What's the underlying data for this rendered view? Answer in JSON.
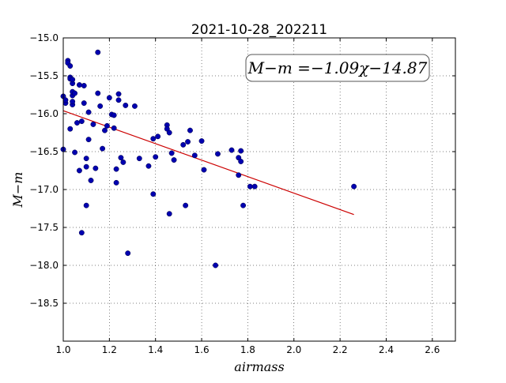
{
  "chart_data": {
    "type": "scatter",
    "title": "2021-10-28_202211",
    "xlabel": "airmass",
    "ylabel": "M−m",
    "xlim": [
      1.0,
      2.7
    ],
    "ylim": [
      -19.0,
      -15.0
    ],
    "x_ticks": [
      "1.0",
      "1.2",
      "1.4",
      "1.6",
      "1.8",
      "2.0",
      "2.2",
      "2.4",
      "2.6"
    ],
    "y_ticks": [
      "−15.0",
      "−15.5",
      "−16.0",
      "−16.5",
      "−17.0",
      "−17.5",
      "−18.0",
      "−18.5"
    ],
    "grid": true,
    "annotation": "M−m =−1.09χ−14.87",
    "fit_line": {
      "x": [
        1.0,
        2.26
      ],
      "y": [
        -15.96,
        -17.33
      ],
      "color": "#cc0000"
    },
    "point_color": "#0000b0",
    "points": {
      "x": [
        1.0,
        1.0,
        1.01,
        1.01,
        1.02,
        1.02,
        1.03,
        1.03,
        1.03,
        1.03,
        1.04,
        1.04,
        1.04,
        1.04,
        1.04,
        1.04,
        1.05,
        1.05,
        1.06,
        1.07,
        1.07,
        1.08,
        1.08,
        1.09,
        1.09,
        1.1,
        1.1,
        1.1,
        1.11,
        1.11,
        1.12,
        1.13,
        1.14,
        1.15,
        1.15,
        1.16,
        1.17,
        1.18,
        1.19,
        1.2,
        1.21,
        1.22,
        1.22,
        1.23,
        1.23,
        1.24,
        1.24,
        1.25,
        1.26,
        1.27,
        1.28,
        1.31,
        1.33,
        1.37,
        1.39,
        1.39,
        1.4,
        1.41,
        1.45,
        1.45,
        1.46,
        1.46,
        1.47,
        1.48,
        1.52,
        1.53,
        1.54,
        1.55,
        1.57,
        1.6,
        1.61,
        1.66,
        1.67,
        1.73,
        1.76,
        1.76,
        1.77,
        1.77,
        1.78,
        1.81,
        1.83,
        2.26
      ],
      "y": [
        -16.47,
        -15.77,
        -15.86,
        -15.82,
        -15.3,
        -15.33,
        -15.52,
        -16.2,
        -15.37,
        -15.54,
        -15.6,
        -15.55,
        -15.76,
        -15.88,
        -15.84,
        -15.71,
        -15.73,
        -16.51,
        -16.12,
        -15.62,
        -16.75,
        -16.1,
        -17.57,
        -15.63,
        -15.86,
        -16.59,
        -16.7,
        -17.21,
        -15.98,
        -16.34,
        -16.88,
        -16.14,
        -16.72,
        -15.19,
        -15.73,
        -15.9,
        -16.46,
        -16.22,
        -16.16,
        -15.79,
        -16.01,
        -16.02,
        -16.19,
        -16.73,
        -16.91,
        -15.74,
        -15.82,
        -16.58,
        -16.64,
        -15.89,
        -17.84,
        -15.9,
        -16.59,
        -16.69,
        -17.06,
        -16.33,
        -16.57,
        -16.3,
        -16.15,
        -16.2,
        -16.25,
        -17.32,
        -16.52,
        -16.61,
        -16.41,
        -17.21,
        -16.37,
        -16.22,
        -16.55,
        -16.36,
        -16.74,
        -18.0,
        -16.53,
        -16.48,
        -16.58,
        -16.81,
        -16.63,
        -16.49,
        -17.21,
        -16.96,
        -16.96,
        -16.96
      ]
    }
  }
}
